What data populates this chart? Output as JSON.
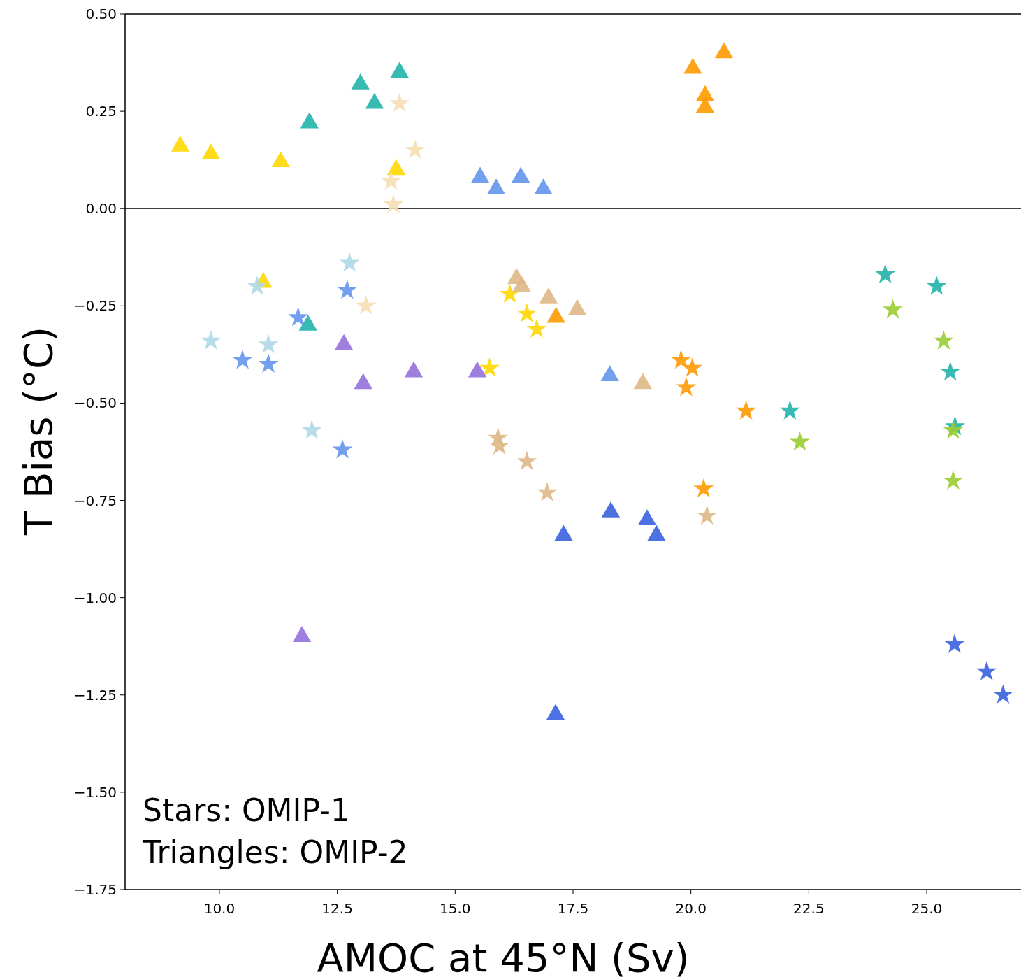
{
  "chart_data": {
    "type": "scatter",
    "xlabel": "AMOC at 45°N (Sv)",
    "ylabel": "T Bias (°C)",
    "annotations": [
      "Stars: OMIP-1",
      "Triangles: OMIP-2"
    ],
    "xlim": [
      8,
      27
    ],
    "ylim": [
      -1.75,
      0.5
    ],
    "xticks": [
      {
        "value": 10,
        "label": "10.0"
      },
      {
        "value": 12.5,
        "label": "12.5"
      },
      {
        "value": 15,
        "label": "15.0"
      },
      {
        "value": 17.5,
        "label": "17.5"
      },
      {
        "value": 20,
        "label": "20.0"
      },
      {
        "value": 22.5,
        "label": "22.5"
      },
      {
        "value": 25,
        "label": "25.0"
      }
    ],
    "yticks": [
      {
        "value": 0.5,
        "label": "0.50"
      },
      {
        "value": 0.25,
        "label": "0.25"
      },
      {
        "value": 0,
        "label": "0.00"
      },
      {
        "value": -0.25,
        "label": "−0.25"
      },
      {
        "value": -0.5,
        "label": "−0.50"
      },
      {
        "value": -0.75,
        "label": "−0.75"
      },
      {
        "value": -1,
        "label": "−1.00"
      },
      {
        "value": -1.25,
        "label": "−1.25"
      },
      {
        "value": -1.5,
        "label": "−1.50"
      },
      {
        "value": -1.75,
        "label": "−1.75"
      }
    ],
    "ref_lines": [
      {
        "axis": "y",
        "value": 0,
        "color": "#000000"
      }
    ],
    "series": [
      {
        "color": "#ffd700",
        "marker": "triangle",
        "x": [
          9.17,
          9.82,
          11.3,
          13.75,
          10.93
        ],
        "values": [
          0.16,
          0.14,
          0.12,
          0.1,
          -0.19
        ]
      },
      {
        "color": "#ffd700",
        "marker": "star",
        "x": [
          16.16,
          16.52,
          16.73,
          15.73
        ],
        "values": [
          -0.22,
          -0.27,
          -0.31,
          -0.41
        ]
      },
      {
        "color": "#20b2aa",
        "marker": "triangle",
        "x": [
          11.91,
          12.99,
          13.29,
          13.82,
          11.88
        ],
        "values": [
          0.22,
          0.32,
          0.27,
          0.35,
          -0.3
        ]
      },
      {
        "color": "#20b2aa",
        "marker": "star",
        "x": [
          24.12,
          25.21,
          25.5,
          22.1,
          25.6
        ],
        "values": [
          -0.17,
          -0.2,
          -0.42,
          -0.52,
          -0.56
        ]
      },
      {
        "color": "#ff9900",
        "marker": "triangle",
        "x": [
          20.04,
          20.7,
          20.3,
          20.3,
          17.14
        ],
        "values": [
          0.36,
          0.4,
          0.29,
          0.26,
          -0.28
        ]
      },
      {
        "color": "#ff9900",
        "marker": "star",
        "x": [
          19.79,
          20.03,
          19.9,
          21.17,
          20.27
        ],
        "values": [
          -0.39,
          -0.41,
          -0.46,
          -0.52,
          -0.72
        ]
      },
      {
        "color": "#6495ed",
        "marker": "triangle",
        "x": [
          15.53,
          15.87,
          16.39,
          16.87,
          18.28
        ],
        "values": [
          0.08,
          0.05,
          0.08,
          0.05,
          -0.43
        ]
      },
      {
        "color": "#6495ed",
        "marker": "star",
        "x": [
          12.71,
          11.67,
          10.49,
          11.04,
          12.61
        ],
        "values": [
          -0.21,
          -0.28,
          -0.39,
          -0.4,
          -0.62
        ]
      },
      {
        "color": "#3a62e0",
        "marker": "triangle",
        "x": [
          17.3,
          18.3,
          19.07,
          19.27,
          17.13
        ],
        "values": [
          -0.84,
          -0.78,
          -0.8,
          -0.84,
          -1.3
        ]
      },
      {
        "color": "#3a62e0",
        "marker": "star",
        "x": [
          25.59,
          26.27,
          26.62
        ],
        "values": [
          -1.12,
          -1.19,
          -1.25
        ]
      },
      {
        "color": "#9370db",
        "marker": "triangle",
        "x": [
          11.75,
          12.64,
          13.05,
          14.12,
          15.47
        ],
        "values": [
          -1.1,
          -0.35,
          -0.45,
          -0.42,
          -0.42
        ]
      },
      {
        "color": "#deb887",
        "marker": "triangle",
        "x": [
          16.3,
          16.41,
          16.98,
          17.59,
          18.98
        ],
        "values": [
          -0.18,
          -0.2,
          -0.23,
          -0.26,
          -0.45
        ]
      },
      {
        "color": "#deb887",
        "marker": "star",
        "x": [
          15.91,
          15.94,
          16.52,
          16.95,
          20.34
        ],
        "values": [
          -0.59,
          -0.61,
          -0.65,
          -0.73,
          -0.79
        ]
      },
      {
        "color": "#f5deb3",
        "marker": "star",
        "x": [
          13.82,
          14.15,
          13.64,
          13.69,
          13.11
        ],
        "values": [
          0.27,
          0.15,
          0.07,
          0.01,
          -0.25
        ]
      },
      {
        "color": "#add8e6",
        "marker": "star",
        "x": [
          12.76,
          10.8,
          9.82,
          11.04,
          11.96
        ],
        "values": [
          -0.14,
          -0.2,
          -0.34,
          -0.35,
          -0.57
        ]
      },
      {
        "color": "#9acd32",
        "marker": "star",
        "x": [
          24.28,
          25.36,
          22.31,
          25.56,
          25.56
        ],
        "values": [
          -0.26,
          -0.34,
          -0.6,
          -0.57,
          -0.7
        ]
      }
    ]
  }
}
